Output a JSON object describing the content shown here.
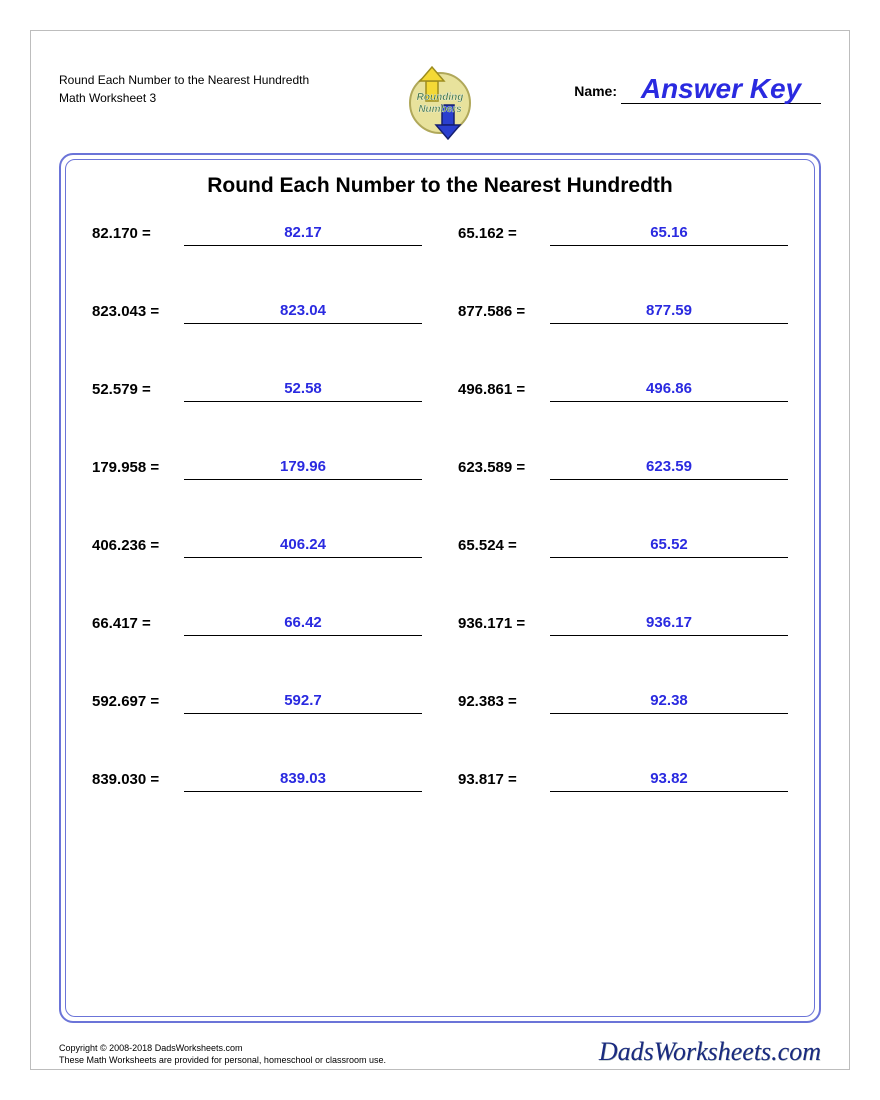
{
  "header": {
    "title_line1": "Round Each Number to the Nearest Hundredth",
    "title_line2": "Math Worksheet 3",
    "name_label": "Name:",
    "answer_key": "Answer Key",
    "logo_text_top": "Rounding",
    "logo_text_bottom": "Numbers"
  },
  "sheet": {
    "title": "Round Each Number to the Nearest Hundredth",
    "problems": [
      {
        "q": "82.170 =",
        "a": "82.17"
      },
      {
        "q": "65.162 =",
        "a": "65.16"
      },
      {
        "q": "823.043 =",
        "a": "823.04"
      },
      {
        "q": "877.586 =",
        "a": "877.59"
      },
      {
        "q": "52.579 =",
        "a": "52.58"
      },
      {
        "q": "496.861 =",
        "a": "496.86"
      },
      {
        "q": "179.958 =",
        "a": "179.96"
      },
      {
        "q": "623.589 =",
        "a": "623.59"
      },
      {
        "q": "406.236 =",
        "a": "406.24"
      },
      {
        "q": "65.524 =",
        "a": "65.52"
      },
      {
        "q": "66.417 =",
        "a": "66.42"
      },
      {
        "q": "936.171 =",
        "a": "936.17"
      },
      {
        "q": "592.697 =",
        "a": "592.7"
      },
      {
        "q": "92.383 =",
        "a": "92.38"
      },
      {
        "q": "839.030 =",
        "a": "839.03"
      },
      {
        "q": "93.817 =",
        "a": "93.82"
      }
    ]
  },
  "footer": {
    "copyright_line1": "Copyright © 2008-2018 DadsWorksheets.com",
    "copyright_line2": "These Math Worksheets are provided for personal, homeschool or classroom use.",
    "brand": "DadsWorksheets.com"
  },
  "style": {
    "answer_color": "#2a2ae0",
    "border_color": "#6b74d8",
    "logo_yellow": "#f4d936",
    "logo_blue": "#2a3fcf",
    "logo_circle": "#e8e29c"
  }
}
